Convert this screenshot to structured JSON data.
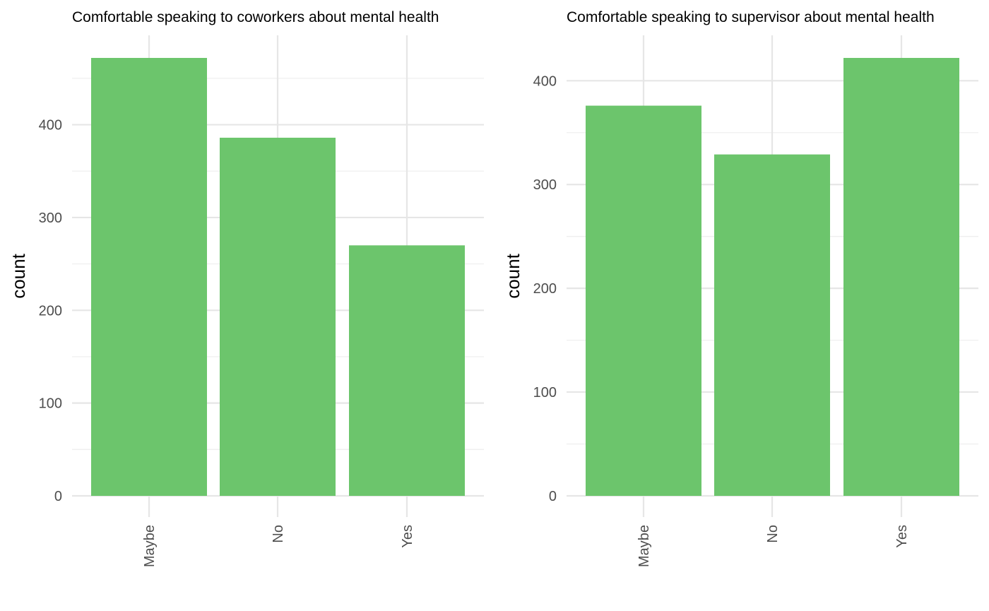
{
  "chart_data": [
    {
      "type": "bar",
      "title": "Comfortable speaking to coworkers about mental health",
      "xlabel": "",
      "ylabel": "count",
      "categories": [
        "Maybe",
        "No",
        "Yes"
      ],
      "values": [
        472,
        386,
        270
      ],
      "ylim": [
        0,
        472
      ],
      "yticks": [
        0,
        100,
        200,
        300,
        400
      ],
      "grid": true,
      "bar_color": "#6cc56c"
    },
    {
      "type": "bar",
      "title": "Comfortable speaking to supervisor about mental health",
      "xlabel": "",
      "ylabel": "count",
      "categories": [
        "Maybe",
        "No",
        "Yes"
      ],
      "values": [
        376,
        329,
        422
      ],
      "ylim": [
        0,
        422
      ],
      "yticks": [
        0,
        100,
        200,
        300,
        400
      ],
      "grid": true,
      "bar_color": "#6cc56c"
    }
  ]
}
